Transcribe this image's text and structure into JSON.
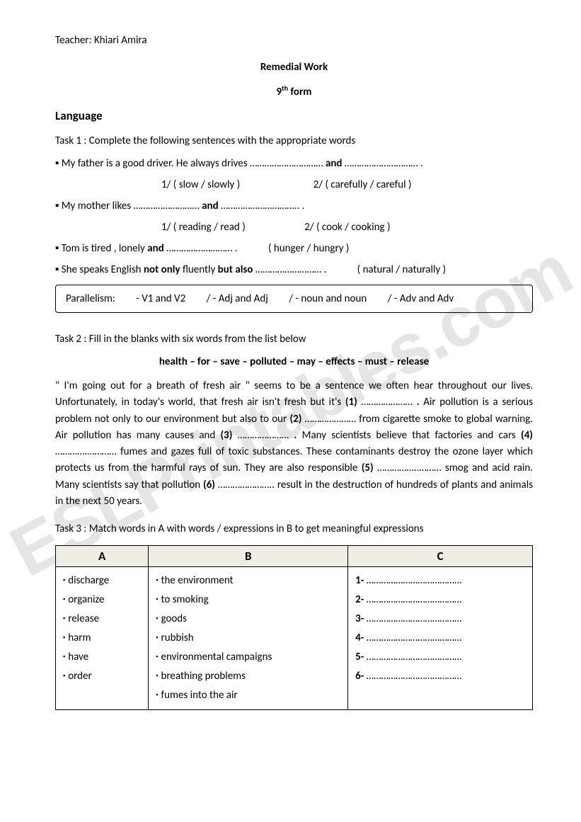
{
  "teacher_line": "Teacher: Khiari Amira",
  "title": "Remedial Work",
  "form_line_prefix": "9",
  "form_line_suffix": " form",
  "section_language": "Language",
  "task1": {
    "heading": "Task 1 : Complete the following sentences with the appropriate words",
    "s1": "▪ My father is a good driver. He always drives ………………………… ",
    "s1_and": "and",
    "s1_end": " ………………………… .",
    "s1_opt1": "1/ ( slow / slowly )",
    "s1_opt2": "2/ ( carefully / careful )",
    "s2": "▪ My mother likes ……………………… ",
    "s2_and": "and",
    "s2_end": " ………………………….. .",
    "s2_opt1": "1/ ( reading / read )",
    "s2_opt2": "2/ ( cook / cooking )",
    "s3": "▪ Tom is tired , lonely ",
    "s3_and": "and",
    "s3_end": " ……………………… .",
    "s3_opt": "( hunger / hungry )",
    "s4_a": "▪ She speaks English ",
    "s4_b": "not only",
    "s4_c": " fluently ",
    "s4_d": "but also",
    "s4_e": " ……………………… .",
    "s4_opt": "( natural / naturally )",
    "rule_label": "Parallelism:",
    "rule_1": "- V1 and V2",
    "rule_2": "/ -  Adj and Adj",
    "rule_3": "/ - noun  and noun",
    "rule_4": "/ - Adv and Adv"
  },
  "task2": {
    "heading": "Task 2 : Fill in the blanks with six words from the list below",
    "wordlist": "health – for – save – polluted – may – effects – must  – release",
    "p1": "  \" I'm going out for a breath of fresh air \" seems to be a sentence we often hear throughout our lives. Unfortunately, in today's world, that fresh air isn't fresh but it's ",
    "b1": "(1)",
    "p2": " ………………… ",
    "dot1": ".",
    "p3": " Air pollution is a serious problem not only to our environment but also to our ",
    "b2": "(2)",
    "p4": " ………………… from cigarette smoke to global warning. Air pollution has many causes and ",
    "b3": "(3)",
    "p5": " ………………… ",
    "dot2": ".",
    "p6": " Many scientists believe that factories and cars ",
    "b4": "(4)",
    "p7": " ………….………… fumes and gazes full of toxic substances. These contaminants destroy the ozone layer which protects us from the harmful rays of sun. They are also responsible ",
    "b5": "(5)",
    "p8": " ……………..……… smog and acid rain. Many scientists say that pollution ",
    "b6": "(6)",
    "p9": " ………………….. result in the destruction of hundreds of plants and animals in the next 50 years."
  },
  "task3": {
    "heading": "Task 3 : Match words in  A with words / expressions in B to get meaningful expressions",
    "headers": {
      "a": "A",
      "b": "B",
      "c": "C"
    },
    "colA": [
      "discharge",
      "organize",
      "release",
      "harm",
      "have",
      "order"
    ],
    "colB": [
      "the environment",
      "to smoking",
      "goods",
      "rubbish",
      "environmental campaigns",
      "breathing problems",
      "fumes into the air"
    ],
    "colC": [
      "1-",
      "2-",
      "3-",
      "4-",
      "5-",
      "6-"
    ],
    "dots": " …………………………………"
  },
  "watermark": "ESLPrintables.com"
}
